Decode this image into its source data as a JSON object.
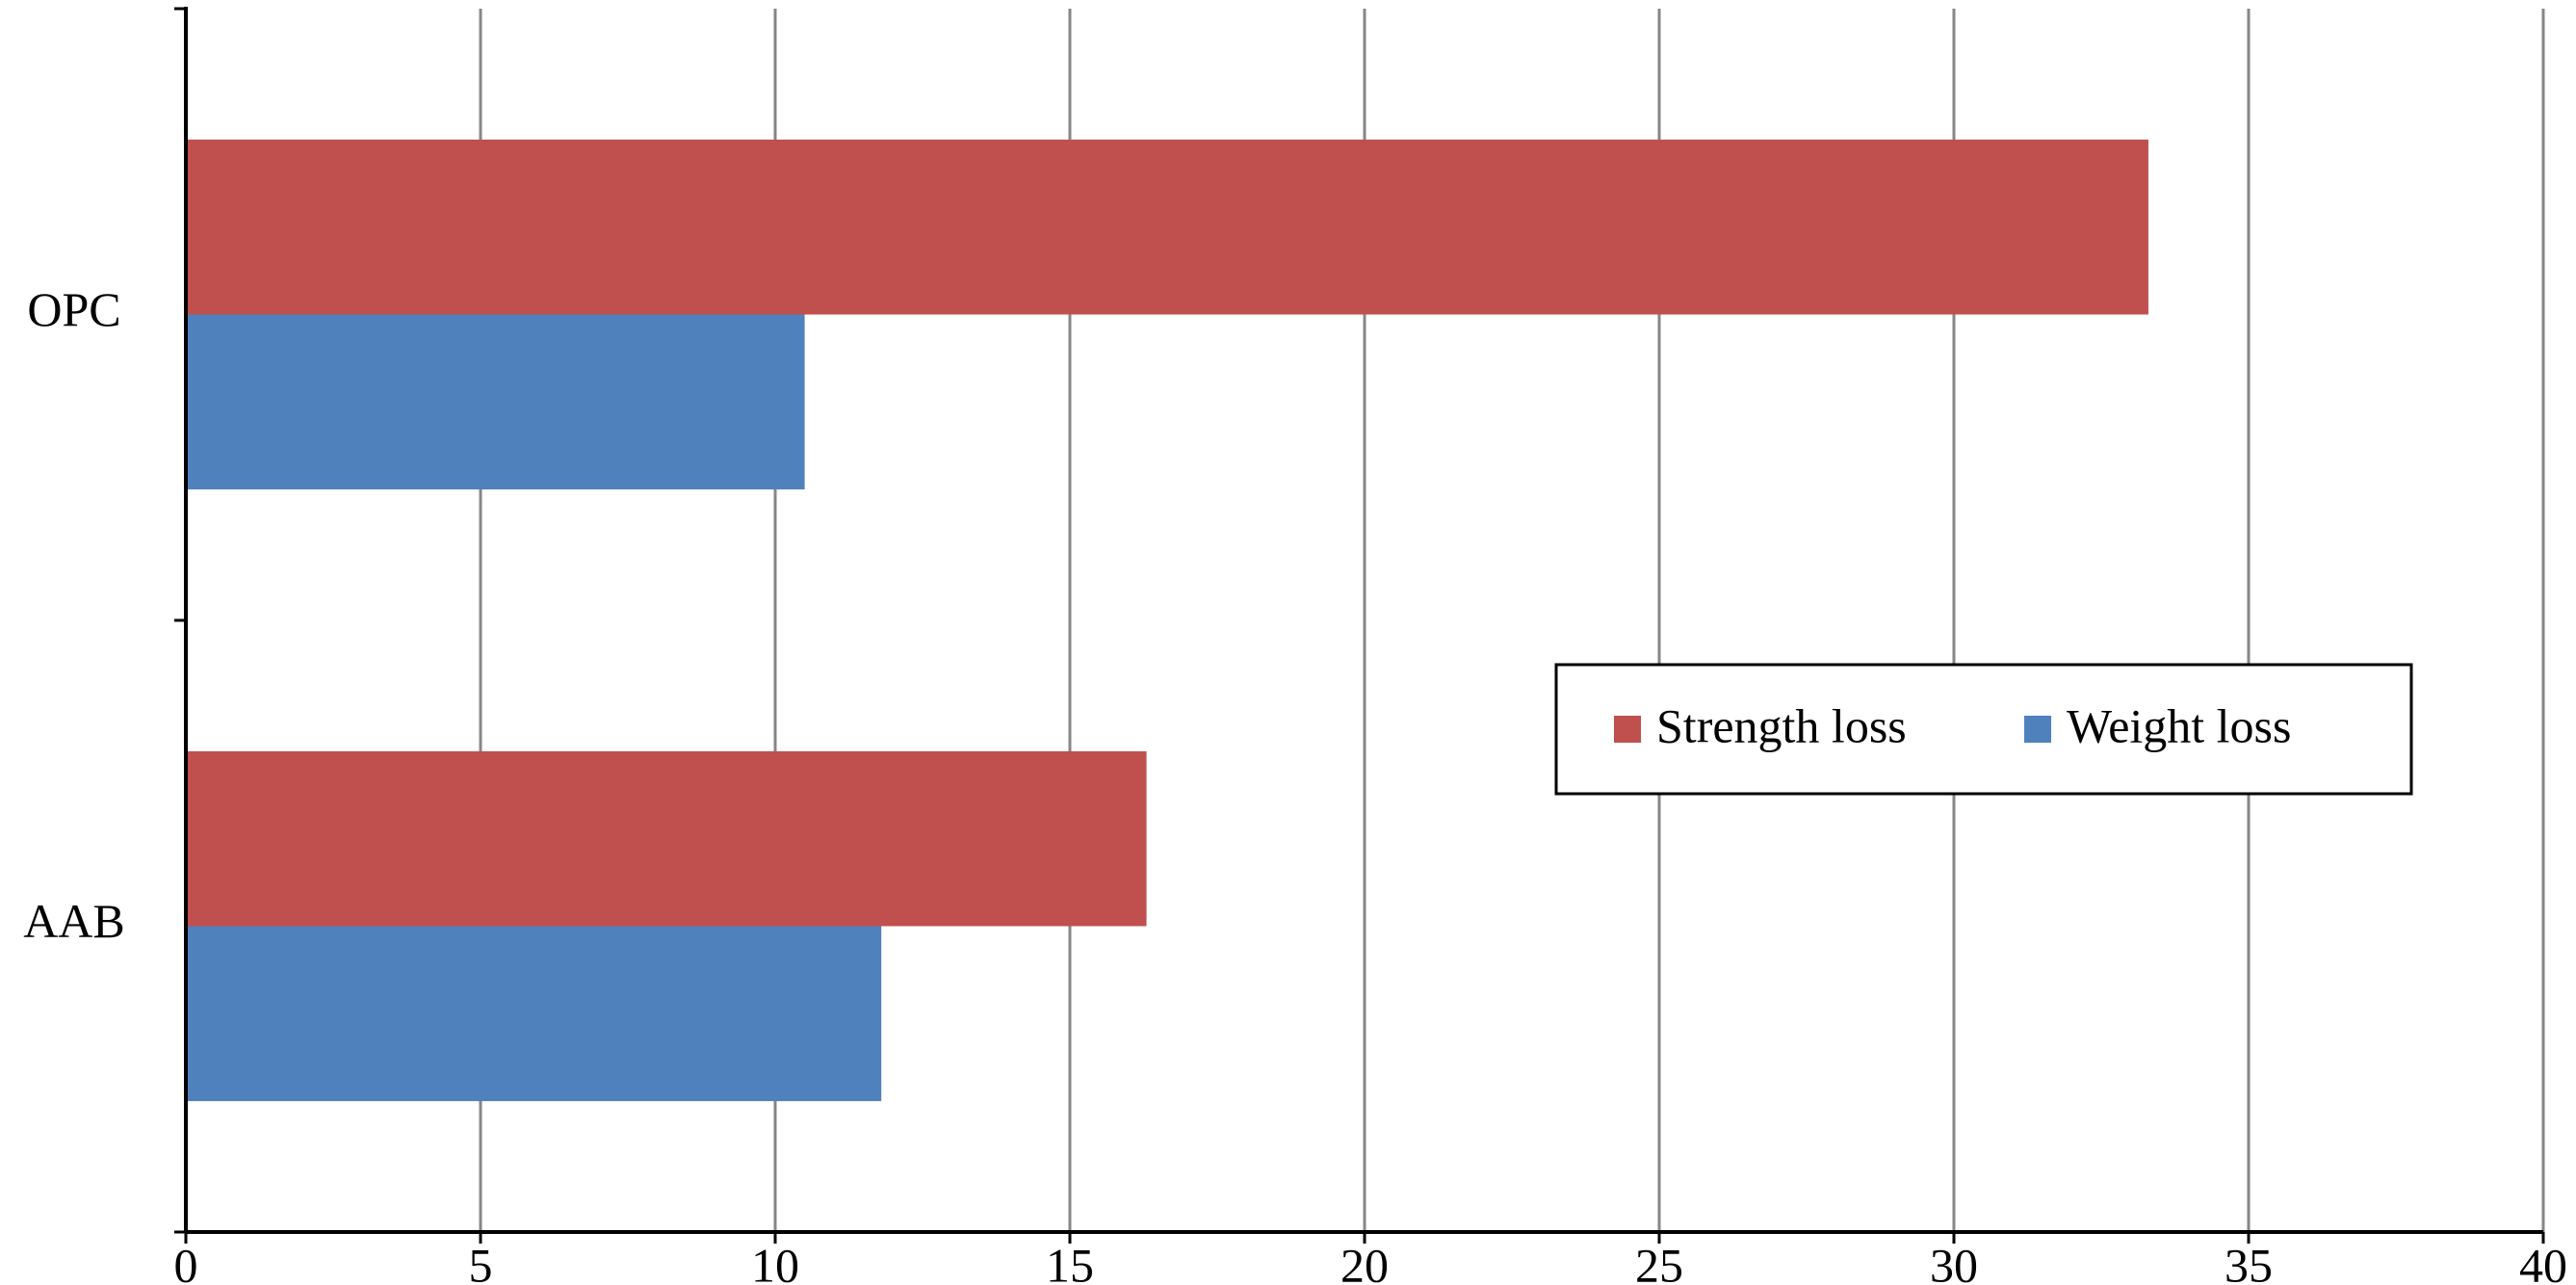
{
  "chart_data": {
    "type": "hbar",
    "categories": [
      "OPC",
      "AAB"
    ],
    "series": [
      {
        "name": "Strength loss",
        "color": "#c0504d",
        "values": [
          33.3,
          16.3
        ]
      },
      {
        "name": "Weight loss",
        "color": "#4f81bd",
        "values": [
          10.5,
          11.8
        ]
      }
    ],
    "xlim": [
      0,
      40
    ],
    "xticks": [
      0,
      5,
      10,
      15,
      20,
      25,
      30,
      35,
      40
    ],
    "grid": true
  }
}
